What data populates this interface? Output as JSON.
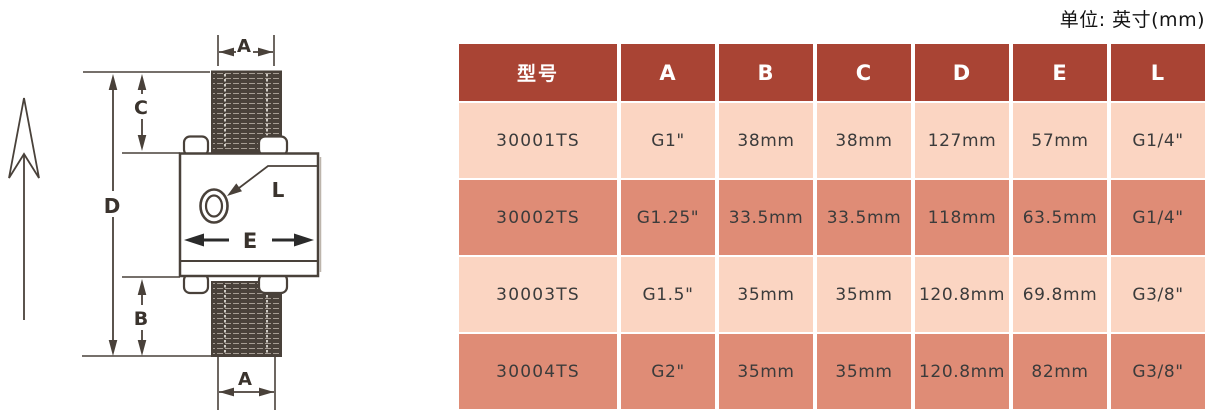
{
  "unit_label": "单位: 英寸(mm)",
  "diagram": {
    "description": "dimension drawing of a double-ended threaded inline fitting with flow direction arrow",
    "labels": {
      "a_top": "A",
      "c": "C",
      "d": "D",
      "b": "B",
      "e": "E",
      "l": "L",
      "a_bottom": "A"
    }
  },
  "table": {
    "headers": [
      "型号",
      "A",
      "B",
      "C",
      "D",
      "E",
      "L"
    ],
    "rows": [
      [
        "30001TS",
        "G1\"",
        "38mm",
        "38mm",
        "127mm",
        "57mm",
        "G1/4\""
      ],
      [
        "30002TS",
        "G1.25\"",
        "33.5mm",
        "33.5mm",
        "118mm",
        "63.5mm",
        "G1/4\""
      ],
      [
        "30003TS",
        "G1.5\"",
        "35mm",
        "35mm",
        "120.8mm",
        "69.8mm",
        "G3/8\""
      ],
      [
        "30004TS",
        "G2\"",
        "35mm",
        "35mm",
        "120.8mm",
        "82mm",
        "G3/8\""
      ]
    ]
  },
  "colors": {
    "header_bg": "#A94434",
    "row_light": "#FBD5C2",
    "row_dark": "#DF8C76",
    "header_text": "#FFFFFF",
    "cell_text": "#3B3B3B",
    "diagram_line": "#49413A"
  }
}
